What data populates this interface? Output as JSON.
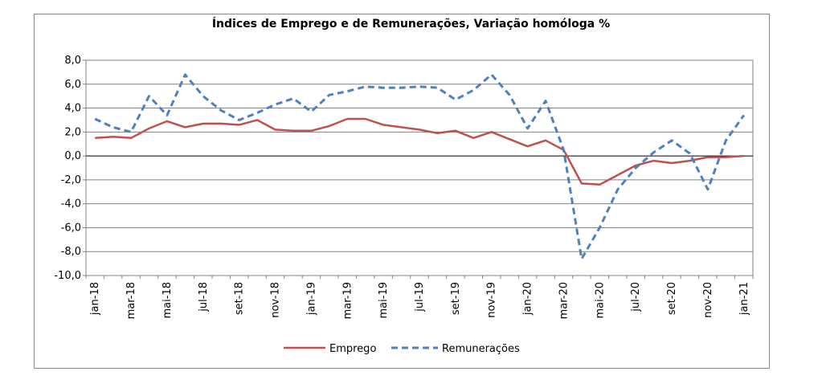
{
  "chart_data": {
    "type": "line",
    "title": "Índices de Emprego e de Remunerações, Variação homóloga %",
    "xlabel": "",
    "ylabel": "",
    "ylim": [
      -10,
      8
    ],
    "yticks": [
      "8,0",
      "6,0",
      "4,0",
      "2,0",
      "0,0",
      "-2,0",
      "-4,0",
      "-6,0",
      "-8,0",
      "-10,0"
    ],
    "x_tick_labels": [
      "jan-18",
      "mar-18",
      "mai-18",
      "jul-18",
      "set-18",
      "nov-18",
      "jan-19",
      "mar-19",
      "mai-19",
      "jul-19",
      "set-19",
      "nov-19",
      "jan-20",
      "mar-20",
      "mai-20",
      "jul-20",
      "set-20",
      "nov-20",
      "jan-21"
    ],
    "categories": [
      "jan-18",
      "fev-18",
      "mar-18",
      "abr-18",
      "mai-18",
      "jun-18",
      "jul-18",
      "ago-18",
      "set-18",
      "out-18",
      "nov-18",
      "dez-18",
      "jan-19",
      "fev-19",
      "mar-19",
      "abr-19",
      "mai-19",
      "jun-19",
      "jul-19",
      "ago-19",
      "set-19",
      "out-19",
      "nov-19",
      "dez-19",
      "jan-20",
      "fev-20",
      "mar-20",
      "abr-20",
      "mai-20",
      "jun-20",
      "jul-20",
      "ago-20",
      "set-20",
      "out-20",
      "nov-20",
      "dez-20",
      "jan-21"
    ],
    "grid": true,
    "legend_position": "bottom",
    "series": [
      {
        "name": "Emprego",
        "color": "#c0504d",
        "style": "solid",
        "values": [
          1.5,
          1.6,
          1.5,
          2.3,
          2.9,
          2.4,
          2.7,
          2.7,
          2.6,
          3.0,
          2.2,
          2.1,
          2.1,
          2.5,
          3.1,
          3.1,
          2.6,
          2.4,
          2.2,
          1.9,
          2.1,
          1.5,
          2.0,
          1.4,
          0.8,
          1.3,
          0.5,
          -2.3,
          -2.4,
          -1.6,
          -0.8,
          -0.4,
          -0.6,
          -0.4,
          -0.1,
          -0.1,
          0.0
        ]
      },
      {
        "name": "Remunerações",
        "color": "#4f81bd",
        "style": "dashed",
        "values": [
          3.1,
          2.4,
          2.0,
          5.0,
          3.4,
          6.8,
          5.0,
          3.8,
          3.0,
          3.6,
          4.3,
          4.8,
          3.7,
          5.1,
          5.4,
          5.8,
          5.7,
          5.7,
          5.8,
          5.7,
          4.7,
          5.5,
          6.8,
          5.1,
          2.3,
          4.6,
          0.5,
          -8.6,
          -6.0,
          -2.8,
          -1.0,
          0.3,
          1.3,
          0.2,
          -2.8,
          1.3,
          3.4
        ]
      }
    ]
  }
}
